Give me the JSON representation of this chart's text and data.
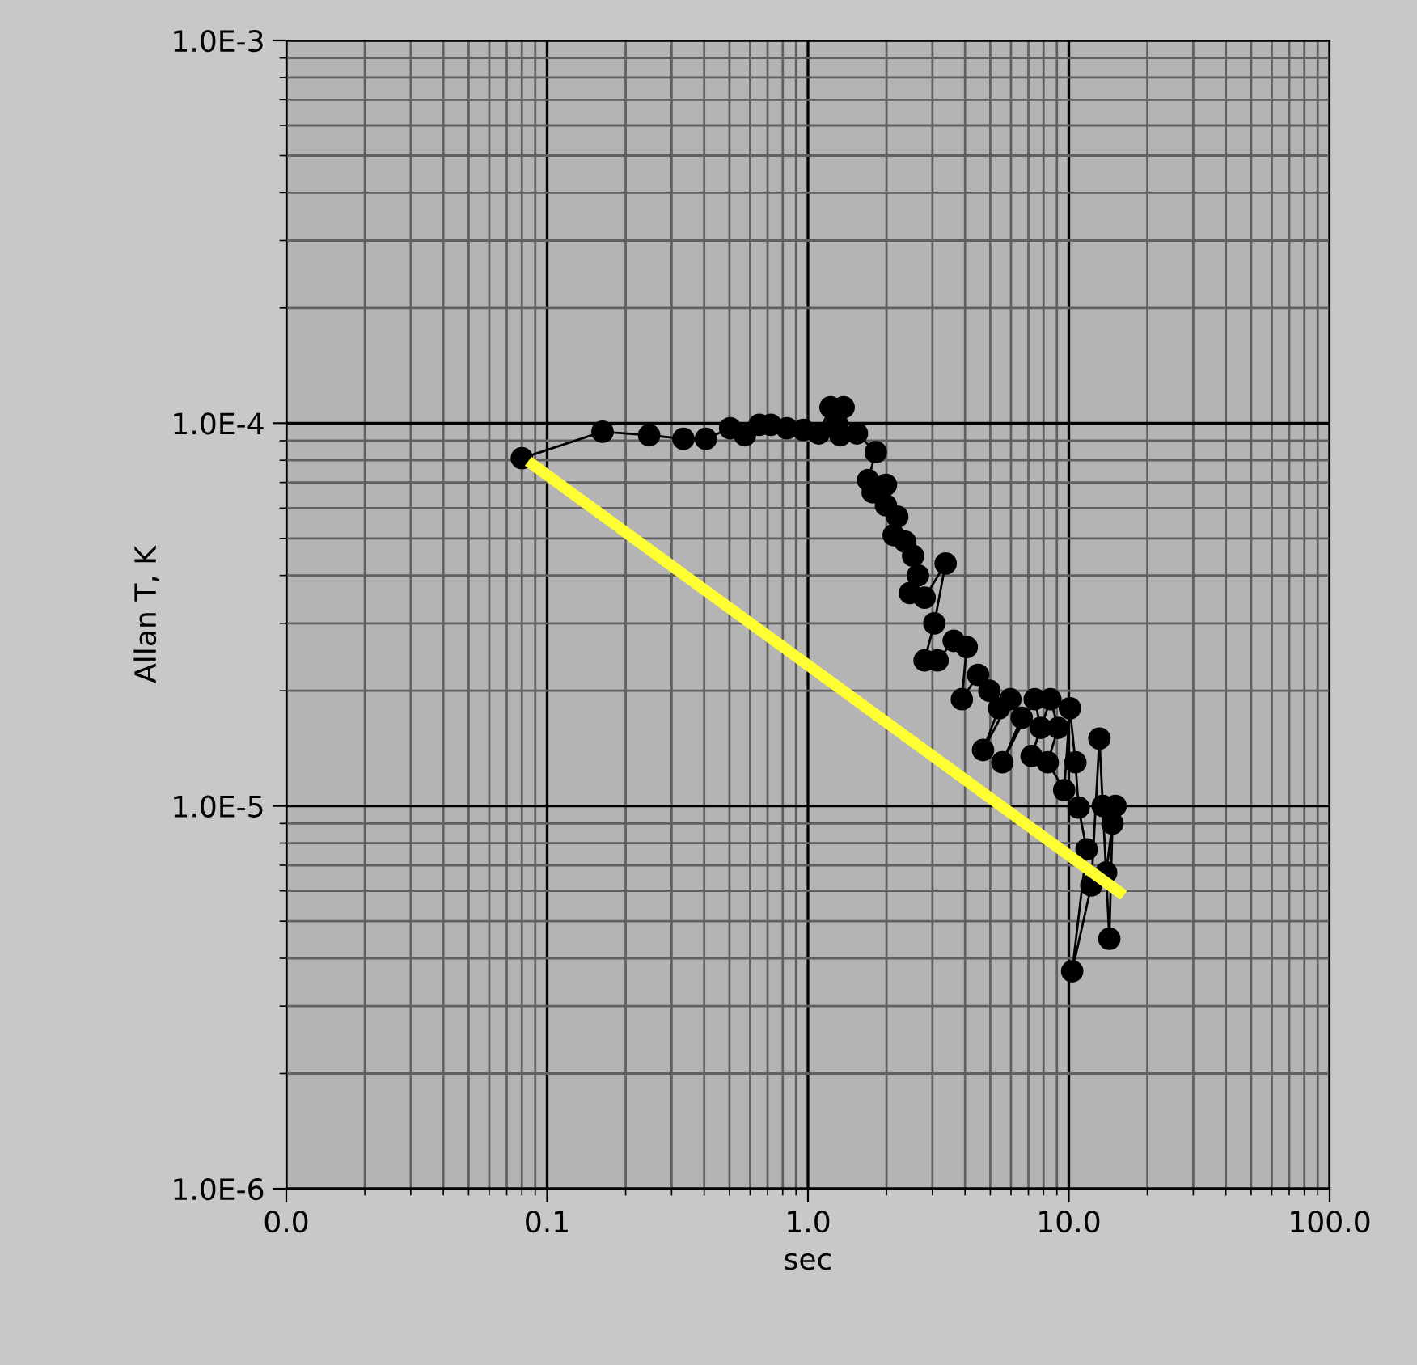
{
  "chart_data": {
    "type": "line",
    "xlabel": "sec",
    "ylabel": "Allan T, K",
    "log": "xy",
    "grid": true,
    "legend": false,
    "xlim": [
      0.01,
      100
    ],
    "ylim": [
      1e-06,
      0.001
    ],
    "xticks": [
      {
        "value": 0.01,
        "label": "0.0"
      },
      {
        "value": 0.1,
        "label": "0.1"
      },
      {
        "value": 1,
        "label": "1.0"
      },
      {
        "value": 10,
        "label": "10.0"
      },
      {
        "value": 100,
        "label": "100.0"
      }
    ],
    "yticks": [
      {
        "value": 1e-06,
        "label": "1.0E-6"
      },
      {
        "value": 1e-05,
        "label": "1.0E-5"
      },
      {
        "value": 0.0001,
        "label": "1.0E-4"
      },
      {
        "value": 0.001,
        "label": "1.0E-3"
      }
    ],
    "series": [
      {
        "color": "#000000",
        "marker": "circle",
        "line_style": "solid",
        "x": [
          0.08,
          0.163,
          0.246,
          0.333,
          0.406,
          0.503,
          0.573,
          0.651,
          0.72,
          0.83,
          0.96,
          1.1,
          1.22,
          1.29,
          1.37,
          1.33,
          1.54,
          1.82,
          1.7,
          1.77,
          1.99,
          1.99,
          2.2,
          2.13,
          2.36,
          2.53,
          2.64,
          2.46,
          2.8,
          3.37,
          3.05,
          2.8,
          3.14,
          3.62,
          4.06,
          3.89,
          4.49,
          4.96,
          5.4,
          4.69,
          5.97,
          6.6,
          5.56,
          7.4,
          7.8,
          7.2,
          8.5,
          9.1,
          8.3,
          9.6,
          10.1,
          10.6,
          10.9,
          11.7,
          10.3,
          12.2,
          13.1,
          13.5,
          14.3,
          14.7,
          13.9,
          15.1
        ],
        "values": [
          8.1e-05,
          9.5e-05,
          9.3e-05,
          9.1e-05,
          9.1e-05,
          9.7e-05,
          9.3e-05,
          9.9e-05,
          9.9e-05,
          9.7e-05,
          9.6e-05,
          9.4e-05,
          0.00011,
          0.0001,
          0.00011,
          9.3e-05,
          9.4e-05,
          8.4e-05,
          7.1e-05,
          6.6e-05,
          6.9e-05,
          6.1e-05,
          5.7e-05,
          5.1e-05,
          4.9e-05,
          4.5e-05,
          4e-05,
          3.6e-05,
          3.5e-05,
          4.3e-05,
          3e-05,
          2.4e-05,
          2.4e-05,
          2.7e-05,
          2.6e-05,
          1.9e-05,
          2.2e-05,
          2e-05,
          1.8e-05,
          1.4e-05,
          1.9e-05,
          1.7e-05,
          1.3e-05,
          1.9e-05,
          1.6e-05,
          1.35e-05,
          1.9e-05,
          1.6e-05,
          1.3e-05,
          1.1e-05,
          1.8e-05,
          1.3e-05,
          9.9e-06,
          7.7e-06,
          3.7e-06,
          6.2e-06,
          1.5e-05,
          1e-05,
          4.5e-06,
          9e-06,
          6.7e-06,
          1e-05
        ]
      },
      {
        "type": "line",
        "color": "#ffff33",
        "marker": "none",
        "line_style": "solid",
        "x": [
          0.088,
          15.6
        ],
        "values": [
          7.8e-05,
          5.96e-06
        ]
      }
    ]
  }
}
